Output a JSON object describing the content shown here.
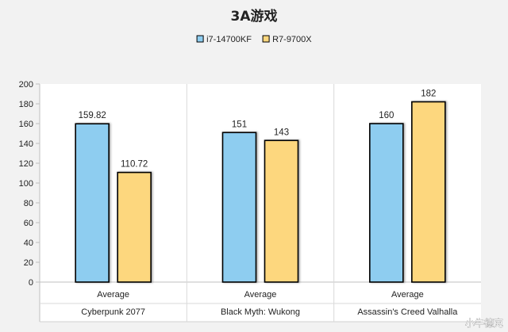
{
  "chart_data": {
    "type": "bar",
    "title": "3A游戏",
    "categories": [
      "Cyberpunk 2077",
      "Black Myth: Wukong",
      "Assassin's Creed Valhalla"
    ],
    "subcategory_label": "Average",
    "series": [
      {
        "name": "i7-14700KF",
        "values": [
          159.82,
          151,
          160
        ],
        "labels": [
          "159.82",
          "151",
          "160"
        ]
      },
      {
        "name": "R7-9700X",
        "values": [
          110.72,
          143,
          182
        ],
        "labels": [
          "110.72",
          "143",
          "182"
        ]
      }
    ],
    "ylim": [
      0,
      200
    ],
    "yticks": [
      0,
      20,
      40,
      60,
      80,
      100,
      120,
      140,
      160,
      180,
      200
    ],
    "xlabel": "",
    "ylabel": "",
    "legend_position": "top-center",
    "grid": false
  },
  "colors": {
    "series": [
      "#8ecdf0",
      "#fdd77e"
    ],
    "bar_outline": "#000000",
    "plot_background": "#ffffff",
    "page_background": "#f2f2f2"
  },
  "watermark": "小牛德克"
}
